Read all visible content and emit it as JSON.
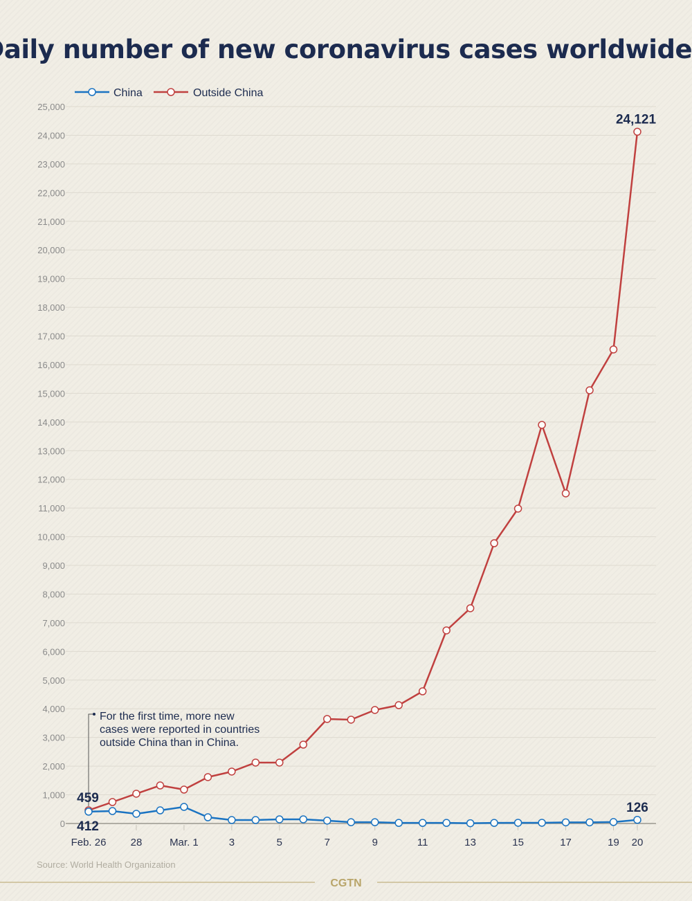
{
  "chart_data": {
    "type": "line",
    "title": "Daily number of new coronavirus cases worldwide:",
    "xlabel": "",
    "ylabel": "",
    "ylim": [
      0,
      25000
    ],
    "yticks": [
      0,
      1000,
      2000,
      3000,
      4000,
      5000,
      6000,
      7000,
      8000,
      9000,
      10000,
      11000,
      12000,
      13000,
      14000,
      15000,
      16000,
      17000,
      18000,
      19000,
      20000,
      21000,
      22000,
      23000,
      24000,
      25000
    ],
    "ytick_labels": [
      "0",
      "1,000",
      "2,000",
      "3,000",
      "4,000",
      "5,000",
      "6,000",
      "7,000",
      "8,000",
      "9,000",
      "10,000",
      "11,000",
      "12,000",
      "13,000",
      "14,000",
      "15,000",
      "16,000",
      "17,000",
      "18,000",
      "19,000",
      "20,000",
      "21,000",
      "22,000",
      "23,000",
      "24,000",
      "25,000"
    ],
    "x": [
      "Feb. 26",
      "Feb. 27",
      "Feb. 28",
      "Feb. 29",
      "Mar. 1",
      "Mar. 2",
      "Mar. 3",
      "Mar. 4",
      "Mar. 5",
      "Mar. 6",
      "Mar. 7",
      "Mar. 8",
      "Mar. 9",
      "Mar. 10",
      "Mar. 11",
      "Mar. 12",
      "Mar. 13",
      "Mar. 14",
      "Mar. 15",
      "Mar. 16",
      "Mar. 17",
      "Mar. 18",
      "Mar. 19",
      "Mar. 20"
    ],
    "xtick_labels": [
      {
        "i": 0,
        "label": "Feb. 26"
      },
      {
        "i": 2,
        "label": "28"
      },
      {
        "i": 4,
        "label": "Mar. 1"
      },
      {
        "i": 6,
        "label": "3"
      },
      {
        "i": 8,
        "label": "5"
      },
      {
        "i": 10,
        "label": "7"
      },
      {
        "i": 12,
        "label": "9"
      },
      {
        "i": 14,
        "label": "11"
      },
      {
        "i": 16,
        "label": "13"
      },
      {
        "i": 18,
        "label": "15"
      },
      {
        "i": 20,
        "label": "17"
      },
      {
        "i": 22,
        "label": "19"
      },
      {
        "i": 23,
        "label": "20"
      }
    ],
    "series": [
      {
        "name": "China",
        "color": "#1a73c2",
        "values": [
          412,
          434,
          338,
          458,
          579,
          217,
          120,
          120,
          145,
          145,
          100,
          45,
          45,
          20,
          20,
          20,
          10,
          20,
          25,
          25,
          40,
          40,
          50,
          126
        ]
      },
      {
        "name": "Outside China",
        "color": "#c0403f",
        "values": [
          459,
          748,
          1038,
          1327,
          1182,
          1617,
          1810,
          2124,
          2124,
          2751,
          3644,
          3620,
          3958,
          4126,
          4609,
          6733,
          7505,
          9773,
          10980,
          13900,
          11511,
          15106,
          16530,
          24121
        ]
      }
    ],
    "data_labels": [
      {
        "series": 1,
        "i": 0,
        "text": "459"
      },
      {
        "series": 0,
        "i": 0,
        "text": "412"
      },
      {
        "series": 1,
        "i": 23,
        "text": "24,121"
      },
      {
        "series": 0,
        "i": 23,
        "text": "126"
      }
    ],
    "annotation": [
      "For the first time, more new",
      "cases were reported in countries",
      "outside China than in China."
    ],
    "legend_position": "top-left",
    "grid": true
  },
  "source": "Source: World Health Organization",
  "logo": "CGTN"
}
